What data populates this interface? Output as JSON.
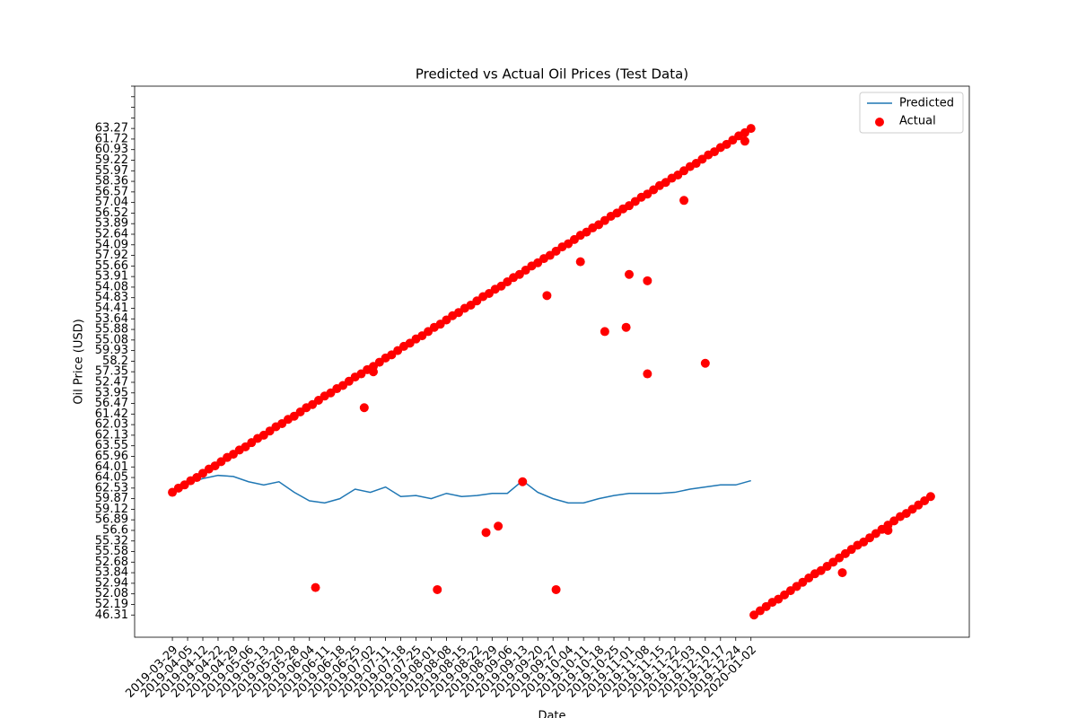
{
  "chart_data": {
    "type": "combo",
    "title": "Predicted vs Actual Oil Prices (Test Data)",
    "x_label": "Date",
    "y_label": "Oil Price (USD)",
    "legend": "upper right",
    "xlim": [
      -12.4,
      261.7
    ],
    "ylim": [
      -2.1,
      50
    ],
    "xticks": [
      {
        "value": 0,
        "label": "2019-03-29"
      },
      {
        "value": 5,
        "label": "2019-04-05"
      },
      {
        "value": 10,
        "label": "2019-04-12"
      },
      {
        "value": 15,
        "label": "2019-04-22"
      },
      {
        "value": 20,
        "label": "2019-04-29"
      },
      {
        "value": 25,
        "label": "2019-05-06"
      },
      {
        "value": 30,
        "label": "2019-05-13"
      },
      {
        "value": 35,
        "label": "2019-05-20"
      },
      {
        "value": 40,
        "label": "2019-05-28"
      },
      {
        "value": 45,
        "label": "2019-06-04"
      },
      {
        "value": 50,
        "label": "2019-06-11"
      },
      {
        "value": 55,
        "label": "2019-06-18"
      },
      {
        "value": 60,
        "label": "2019-06-25"
      },
      {
        "value": 65,
        "label": "2019-07-02"
      },
      {
        "value": 70,
        "label": "2019-07-11"
      },
      {
        "value": 75,
        "label": "2019-07-18"
      },
      {
        "value": 80,
        "label": "2019-07-25"
      },
      {
        "value": 85,
        "label": "2019-08-01"
      },
      {
        "value": 90,
        "label": "2019-08-08"
      },
      {
        "value": 95,
        "label": "2019-08-15"
      },
      {
        "value": 100,
        "label": "2019-08-22"
      },
      {
        "value": 105,
        "label": "2019-08-29"
      },
      {
        "value": 110,
        "label": "2019-09-06"
      },
      {
        "value": 115,
        "label": "2019-09-13"
      },
      {
        "value": 120,
        "label": "2019-09-20"
      },
      {
        "value": 125,
        "label": "2019-09-27"
      },
      {
        "value": 130,
        "label": "2019-10-04"
      },
      {
        "value": 135,
        "label": "2019-10-11"
      },
      {
        "value": 140,
        "label": "2019-10-18"
      },
      {
        "value": 145,
        "label": "2019-10-25"
      },
      {
        "value": 150,
        "label": "2019-11-01"
      },
      {
        "value": 155,
        "label": "2019-11-08"
      },
      {
        "value": 160,
        "label": "2019-11-15"
      },
      {
        "value": 165,
        "label": "2019-11-22"
      },
      {
        "value": 170,
        "label": "2019-12-03"
      },
      {
        "value": 175,
        "label": "2019-12-10"
      },
      {
        "value": 180,
        "label": "2019-12-17"
      },
      {
        "value": 185,
        "label": "2019-12-24"
      },
      {
        "value": 190,
        "label": "2020-01-02"
      }
    ],
    "yticks": [
      {
        "value": 0,
        "label": "46.31"
      },
      {
        "value": 1,
        "label": "52.19"
      },
      {
        "value": 2,
        "label": "52.08"
      },
      {
        "value": 3,
        "label": "52.94"
      },
      {
        "value": 4,
        "label": "53.84"
      },
      {
        "value": 5,
        "label": "52.68"
      },
      {
        "value": 6,
        "label": "55.58"
      },
      {
        "value": 7,
        "label": "55.32"
      },
      {
        "value": 8,
        "label": "56.6"
      },
      {
        "value": 9,
        "label": "56.89"
      },
      {
        "value": 10,
        "label": "59.12"
      },
      {
        "value": 11,
        "label": "59.87"
      },
      {
        "value": 12,
        "label": "62.53"
      },
      {
        "value": 13,
        "label": "64.05"
      },
      {
        "value": 14,
        "label": "64.01"
      },
      {
        "value": 15,
        "label": "65.96"
      },
      {
        "value": 16,
        "label": "63.55"
      },
      {
        "value": 17,
        "label": "62.13"
      },
      {
        "value": 18,
        "label": "62.03"
      },
      {
        "value": 19,
        "label": "61.42"
      },
      {
        "value": 20,
        "label": "56.47"
      },
      {
        "value": 21,
        "label": "53.95"
      },
      {
        "value": 22,
        "label": "52.47"
      },
      {
        "value": 23,
        "label": "57.35"
      },
      {
        "value": 24,
        "label": "58.2"
      },
      {
        "value": 25,
        "label": "59.93"
      },
      {
        "value": 26,
        "label": "55.08"
      },
      {
        "value": 27,
        "label": "55.88"
      },
      {
        "value": 28,
        "label": "53.64"
      },
      {
        "value": 29,
        "label": "54.41"
      },
      {
        "value": 30,
        "label": "54.83"
      },
      {
        "value": 31,
        "label": "54.08"
      },
      {
        "value": 32,
        "label": "53.91"
      },
      {
        "value": 33,
        "label": "55.66"
      },
      {
        "value": 34,
        "label": "57.92"
      },
      {
        "value": 35,
        "label": "54.09"
      },
      {
        "value": 36,
        "label": "52.64"
      },
      {
        "value": 37,
        "label": "53.89"
      },
      {
        "value": 38,
        "label": "56.52"
      },
      {
        "value": 39,
        "label": "57.04"
      },
      {
        "value": 40,
        "label": "56.57"
      },
      {
        "value": 41,
        "label": "58.36"
      },
      {
        "value": 42,
        "label": "55.97"
      },
      {
        "value": 43,
        "label": "59.22"
      },
      {
        "value": 44,
        "label": "60.93"
      },
      {
        "value": 45,
        "label": "61.72"
      },
      {
        "value": 46,
        "label": "63.27"
      },
      {
        "value": 47,
        "label": null
      },
      {
        "value": 48,
        "label": null
      },
      {
        "value": 49,
        "label": null
      },
      {
        "value": 50,
        "label": null
      }
    ],
    "series": [
      {
        "name": "Predicted",
        "kind": "line",
        "color": "#1f77b4",
        "x": [
          0,
          5,
          10,
          15,
          20,
          25,
          30,
          35,
          40,
          45,
          50,
          55,
          60,
          65,
          70,
          75,
          80,
          85,
          90,
          95,
          100,
          105,
          110,
          115,
          120,
          125,
          130,
          135,
          140,
          145,
          150,
          155,
          160,
          165,
          170,
          175,
          180,
          185,
          190
        ],
        "values": [
          11.6,
          12.5,
          12.9,
          13.2,
          13.1,
          12.6,
          12.3,
          12.6,
          11.6,
          10.8,
          10.6,
          11.0,
          11.9,
          11.6,
          12.1,
          11.2,
          11.3,
          11.0,
          11.5,
          11.2,
          11.3,
          11.5,
          11.5,
          12.7,
          11.6,
          11.0,
          10.6,
          10.6,
          11.0,
          11.3,
          11.5,
          11.5,
          11.5,
          11.6,
          11.9,
          12.1,
          12.3,
          12.3,
          12.7
        ]
      },
      {
        "name": "Actual",
        "kind": "scatter",
        "color": "#ff0000",
        "x": [
          0,
          2,
          4,
          6,
          8,
          10,
          12,
          14,
          16,
          18,
          20,
          22,
          24,
          26,
          28,
          30,
          32,
          34,
          36,
          38,
          40,
          42,
          44,
          46,
          48,
          50,
          52,
          54,
          56,
          58,
          60,
          62,
          64,
          66,
          68,
          70,
          72,
          74,
          76,
          78,
          80,
          82,
          84,
          86,
          88,
          90,
          92,
          94,
          96,
          98,
          100,
          102,
          104,
          106,
          108,
          110,
          112,
          114,
          116,
          118,
          120,
          122,
          124,
          126,
          128,
          130,
          132,
          134,
          136,
          138,
          140,
          142,
          144,
          146,
          148,
          150,
          152,
          154,
          156,
          158,
          160,
          162,
          164,
          166,
          168,
          170,
          172,
          174,
          176,
          178,
          180,
          182,
          184,
          186,
          188,
          190,
          191,
          193,
          195,
          197,
          199,
          201,
          203,
          205,
          207,
          209,
          211,
          213,
          215,
          217,
          219,
          221,
          223,
          225,
          227,
          229,
          231,
          233,
          235,
          237,
          239,
          241,
          243,
          245,
          247,
          249,
          47,
          63,
          66,
          87,
          103,
          107,
          115,
          123,
          126,
          134,
          142,
          149,
          150,
          156,
          156,
          168,
          175,
          188,
          220,
          235
        ],
        "values": [
          11.6,
          12.0,
          12.3,
          12.7,
          13.0,
          13.4,
          13.8,
          14.1,
          14.5,
          14.9,
          15.2,
          15.6,
          15.9,
          16.3,
          16.7,
          17.0,
          17.4,
          17.8,
          18.1,
          18.5,
          18.8,
          19.2,
          19.6,
          19.9,
          20.3,
          20.7,
          21.0,
          21.4,
          21.7,
          22.1,
          22.5,
          22.8,
          23.2,
          23.5,
          23.9,
          24.3,
          24.6,
          25.0,
          25.4,
          25.7,
          26.1,
          26.4,
          26.8,
          27.2,
          27.5,
          27.9,
          28.3,
          28.6,
          29.0,
          29.3,
          29.7,
          30.1,
          30.4,
          30.8,
          31.1,
          31.5,
          31.9,
          32.2,
          32.6,
          33.0,
          33.3,
          33.7,
          34.0,
          34.4,
          34.8,
          35.1,
          35.5,
          35.9,
          36.2,
          36.6,
          36.9,
          37.3,
          37.7,
          38.0,
          38.4,
          38.7,
          39.1,
          39.5,
          39.8,
          40.2,
          40.6,
          40.9,
          41.3,
          41.6,
          42.0,
          42.4,
          42.7,
          43.1,
          43.5,
          43.8,
          44.2,
          44.5,
          44.9,
          45.3,
          45.6,
          46.0,
          0.0,
          0.4,
          0.8,
          1.2,
          1.5,
          1.9,
          2.3,
          2.7,
          3.1,
          3.5,
          3.9,
          4.2,
          4.6,
          5.0,
          5.4,
          5.8,
          6.2,
          6.6,
          6.9,
          7.3,
          7.7,
          8.1,
          8.5,
          8.9,
          9.3,
          9.6,
          10.0,
          10.4,
          10.8,
          11.2,
          2.6,
          19.6,
          23.0,
          2.4,
          7.8,
          8.4,
          12.6,
          30.2,
          2.4,
          33.4,
          26.8,
          27.2,
          32.2,
          31.6,
          22.8,
          39.2,
          23.8,
          44.8,
          4.0,
          8.0
        ]
      }
    ]
  }
}
